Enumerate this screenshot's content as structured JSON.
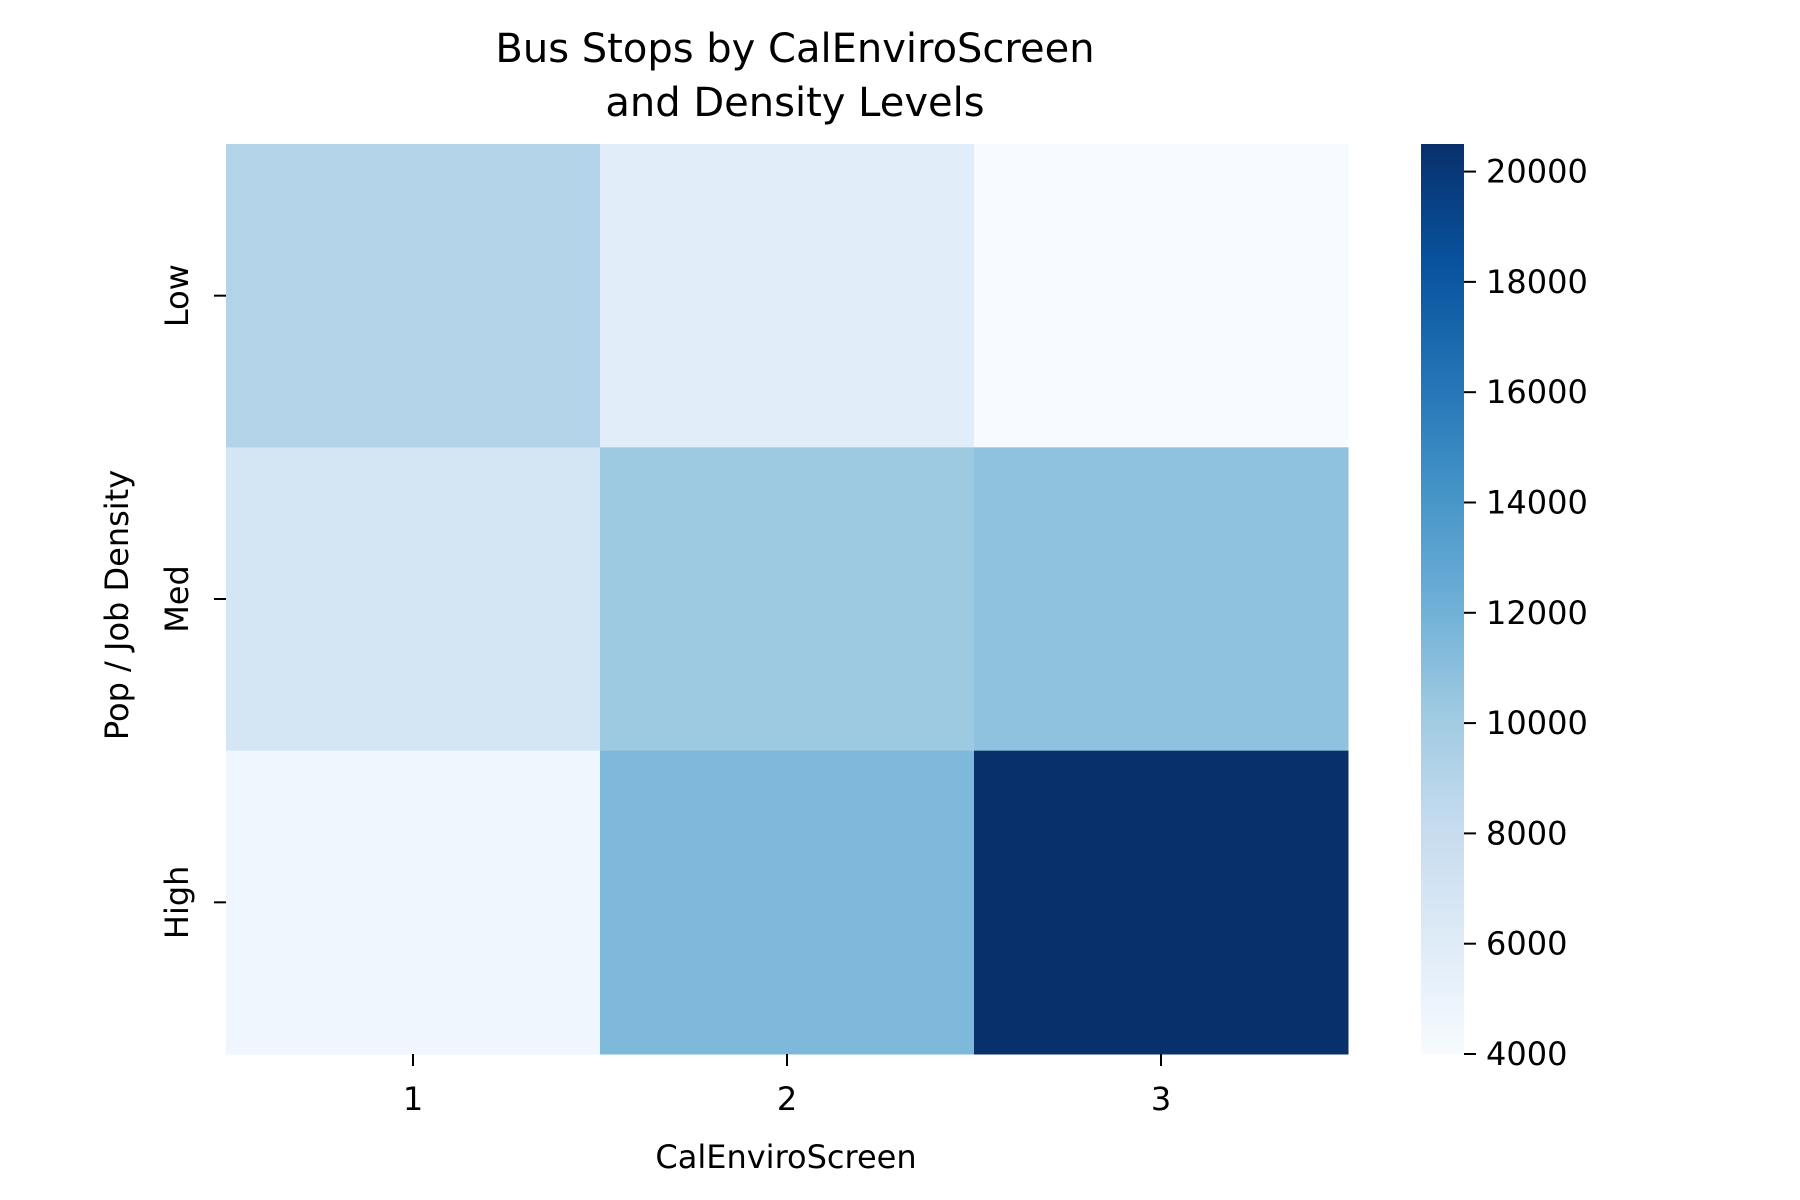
{
  "chart_data": {
    "type": "heatmap",
    "title_lines": [
      "Bus Stops by CalEnviroScreen",
      "and Density Levels"
    ],
    "xlabel": "CalEnviroScreen",
    "ylabel": "Pop / Job Density",
    "x_categories": [
      "1",
      "2",
      "3"
    ],
    "y_categories": [
      "Low",
      "Med",
      "High"
    ],
    "values": [
      [
        9100,
        5800,
        4000
      ],
      [
        6900,
        10200,
        10800
      ],
      [
        4600,
        11500,
        20500
      ]
    ],
    "colormap": "Blues",
    "color_range": [
      4000,
      20500
    ],
    "colorbar_ticks": [
      4000,
      6000,
      8000,
      10000,
      12000,
      14000,
      16000,
      18000,
      20000
    ]
  }
}
